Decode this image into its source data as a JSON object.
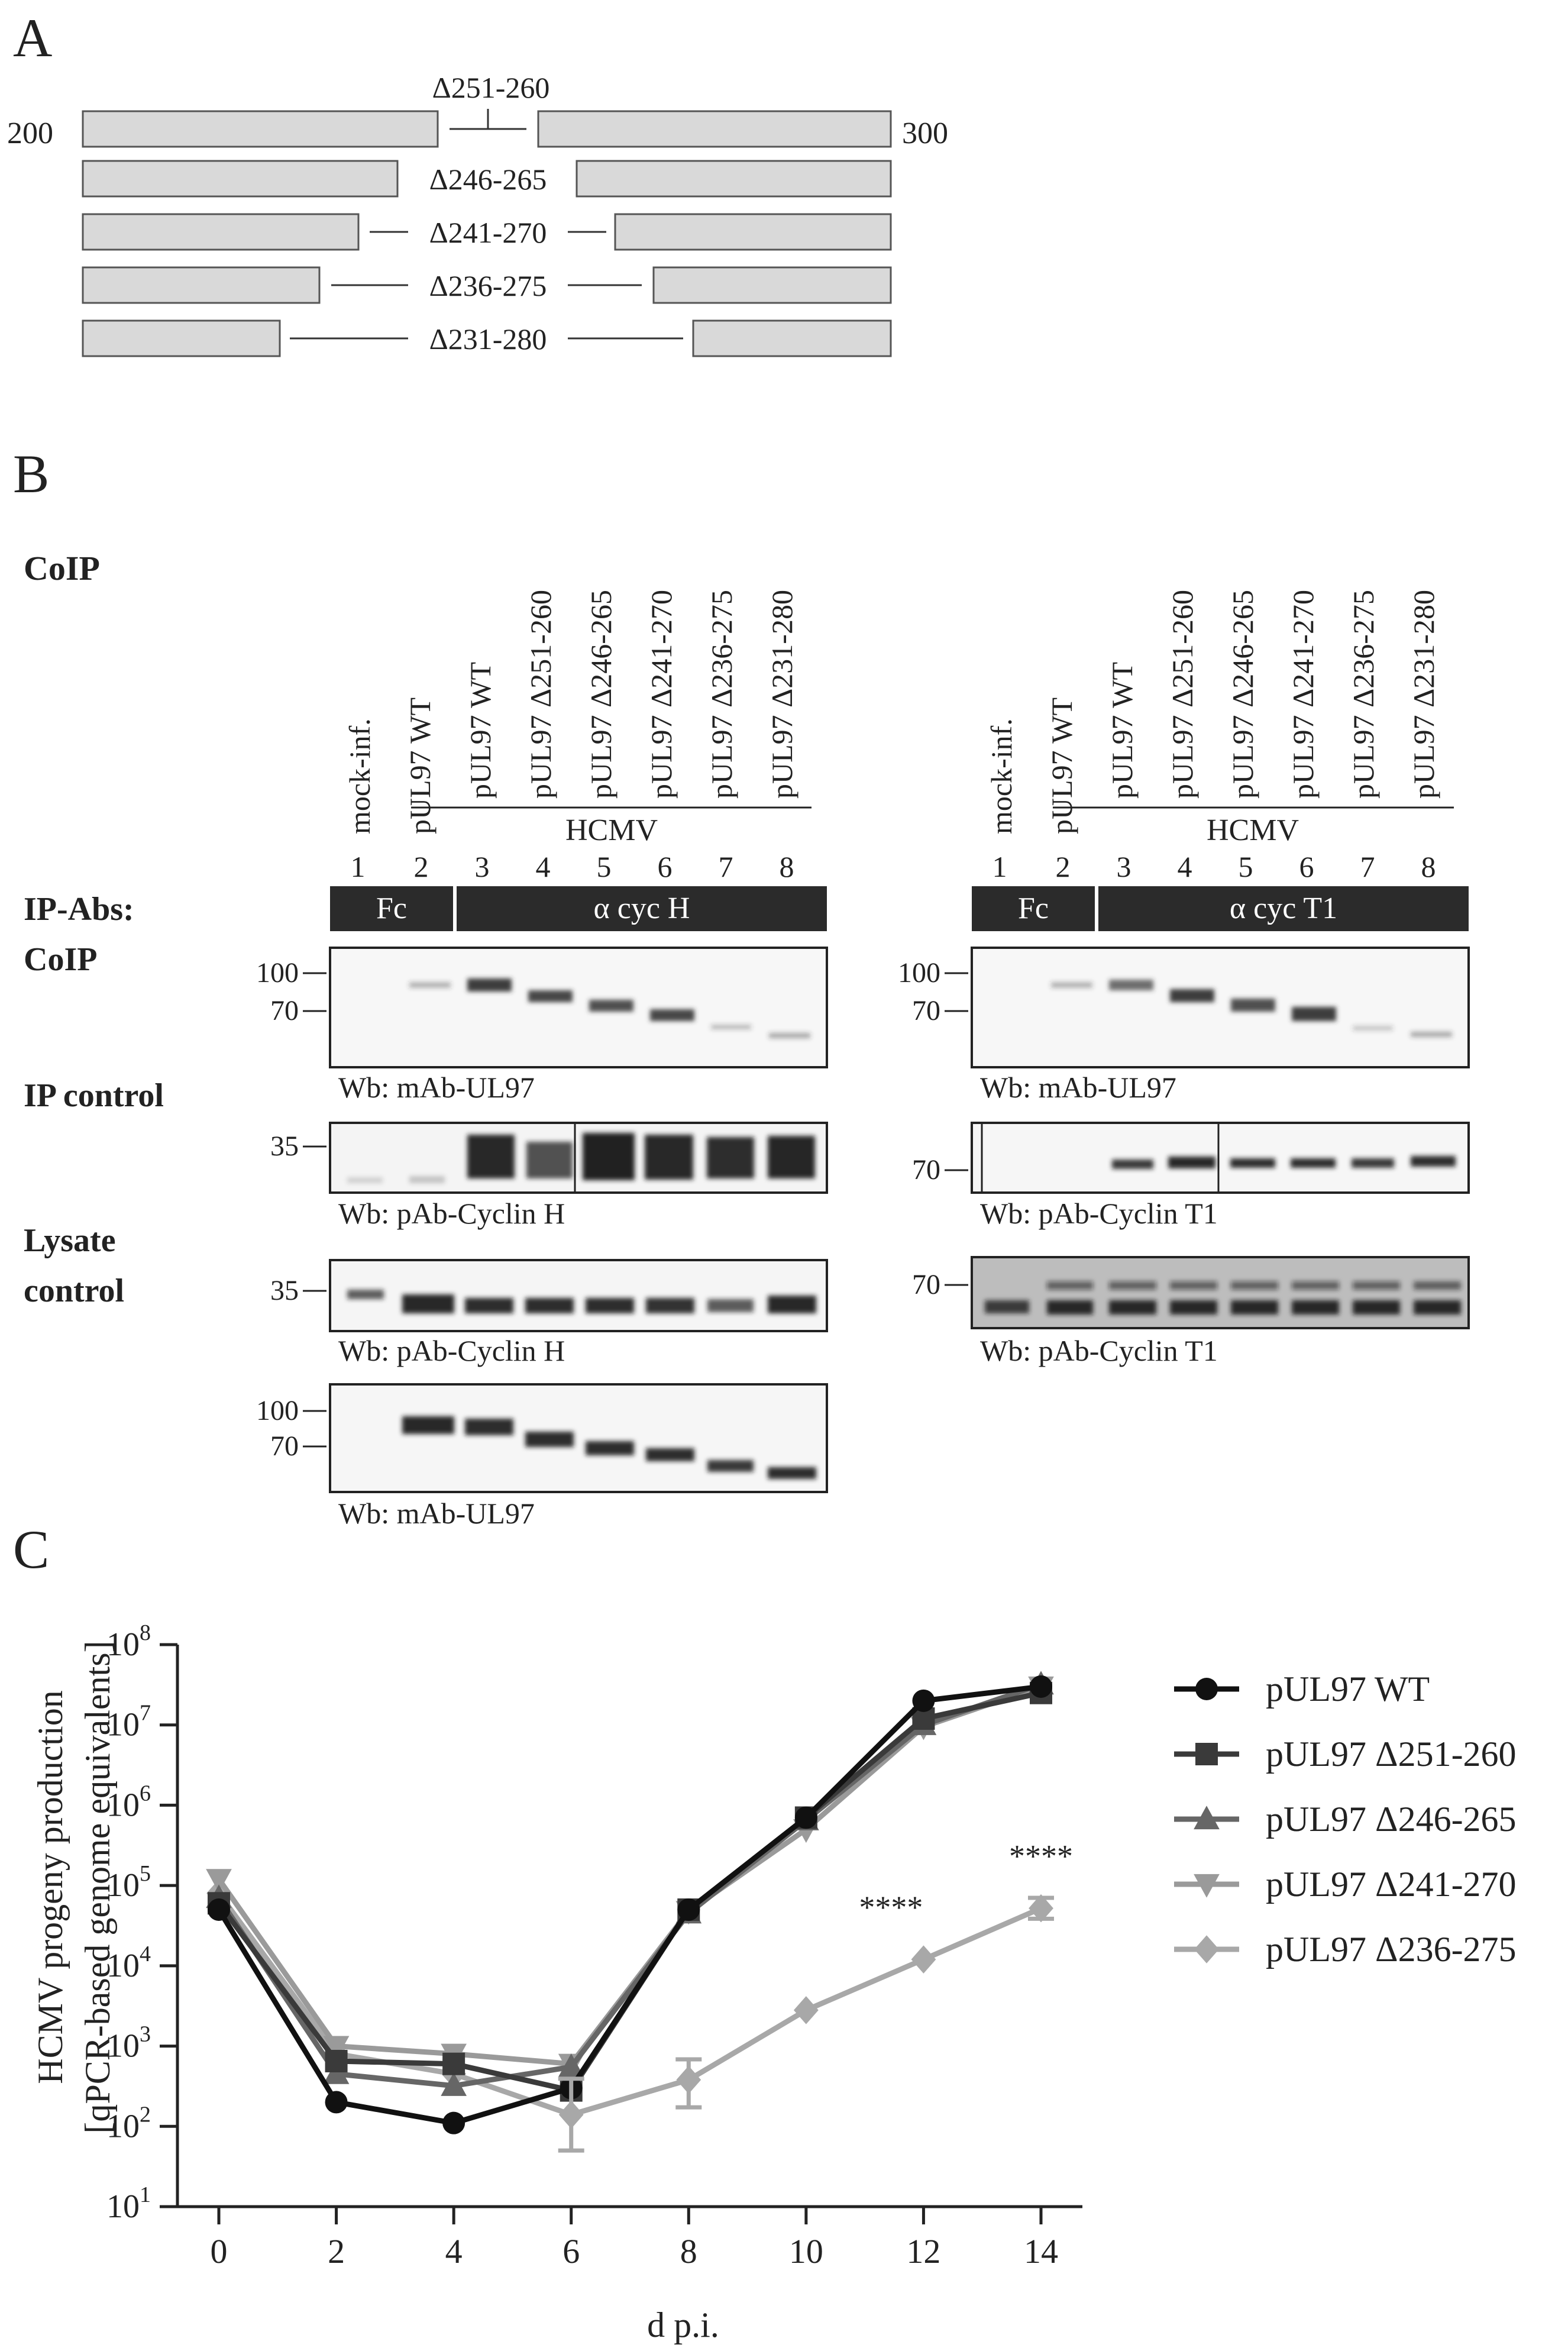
{
  "panel_a": {
    "letter": "A",
    "start": "200",
    "end": "300",
    "constructs": [
      "Δ251-260",
      "Δ246-265",
      "Δ241-270",
      "Δ236-275",
      "Δ231-280"
    ]
  },
  "panel_b": {
    "letter": "B",
    "coip_heading": "CoIP",
    "ip_abs_label": "IP-Abs:",
    "coip_label": "CoIP",
    "ip_control_label": "IP control",
    "lysate_label_1": "Lysate",
    "lysate_label_2": "control",
    "mock": "mock-inf.",
    "hcmv": "HCMV",
    "lanes": [
      "pUL97 WT",
      "pUL97 WT",
      "pUL97 Δ251-260",
      "pUL97 Δ246-265",
      "pUL97 Δ241-270",
      "pUL97 Δ236-275",
      "pUL97 Δ231-280"
    ],
    "lane_numbers": [
      "1",
      "2",
      "3",
      "4",
      "5",
      "6",
      "7",
      "8"
    ],
    "fc": "Fc",
    "left_ab": "α cyc H",
    "right_ab": "α cyc T1",
    "mw_100": "100",
    "mw_70": "70",
    "mw_35": "35",
    "wb_ul97": "Wb: mAb-UL97",
    "wb_cych": "Wb: pAb-Cyclin H",
    "wb_cyct1": "Wb: pAb-Cyclin T1"
  },
  "panel_c": {
    "letter": "C",
    "sig": "****"
  },
  "chart_data": {
    "type": "line",
    "x": [
      0,
      2,
      4,
      6,
      8,
      10,
      12,
      14
    ],
    "xlabel": "d p.i.",
    "ylabel_line1": "HCMV progeny production",
    "ylabel_line2": "[qPCR-based genome equivalents]",
    "yscale": "log",
    "ylim": [
      10,
      100000000
    ],
    "xticks": [
      "0",
      "2",
      "4",
      "6",
      "8",
      "10",
      "12",
      "14"
    ],
    "yticks": [
      {
        "base": "10",
        "exp": "1"
      },
      {
        "base": "10",
        "exp": "2"
      },
      {
        "base": "10",
        "exp": "3"
      },
      {
        "base": "10",
        "exp": "4"
      },
      {
        "base": "10",
        "exp": "5"
      },
      {
        "base": "10",
        "exp": "6"
      },
      {
        "base": "10",
        "exp": "7"
      },
      {
        "base": "10",
        "exp": "8"
      }
    ],
    "series": [
      {
        "name": "pUL97 WT",
        "marker": "circle",
        "color": "#111111",
        "values": [
          50000,
          200,
          110,
          300,
          50000,
          700000,
          20000000,
          30000000
        ]
      },
      {
        "name": "pUL97 Δ251-260",
        "marker": "square",
        "color": "#3a3a3a",
        "values": [
          60000,
          650,
          600,
          280,
          50000,
          700000,
          12000000,
          25000000
        ]
      },
      {
        "name": "pUL97 Δ246-265",
        "marker": "triangle-up",
        "color": "#666666",
        "values": [
          70000,
          450,
          320,
          550,
          45000,
          650000,
          10000000,
          32000000
        ]
      },
      {
        "name": "pUL97 Δ241-270",
        "marker": "triangle-down",
        "color": "#9a9a9a",
        "values": [
          120000,
          1000,
          800,
          600,
          48000,
          500000,
          9500000,
          30000000
        ]
      },
      {
        "name": "pUL97 Δ236-275",
        "marker": "diamond",
        "color": "#a8a8a8",
        "values": [
          80000,
          800,
          450,
          140,
          380,
          2800,
          12000,
          52000
        ]
      }
    ],
    "annotations": [
      {
        "x": 12,
        "text": "****"
      },
      {
        "x": 14,
        "text": "****"
      }
    ]
  }
}
